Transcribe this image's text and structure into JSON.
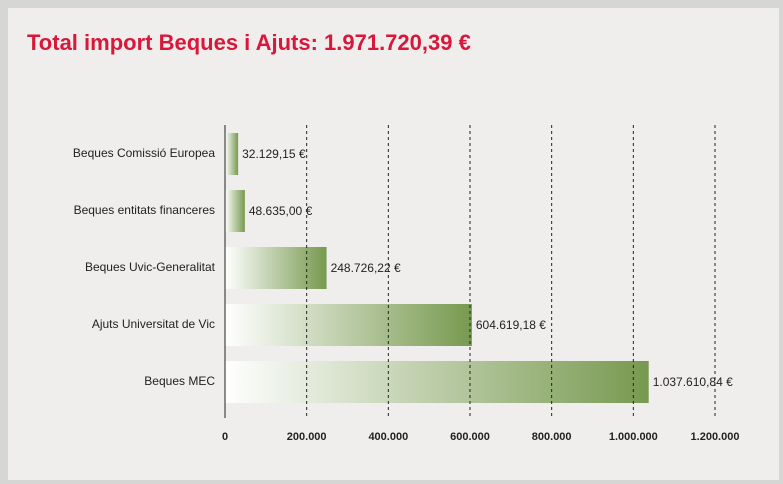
{
  "chart_data": {
    "type": "barh",
    "title": "Total import Beques i Ajuts: 1.971.720,39 €",
    "categories": [
      "Beques Comissió Europea",
      "Beques entitats financeres",
      "Beques Uvic-Generalitat",
      "Ajuts Universitat de Vic",
      "Beques MEC"
    ],
    "values": [
      32129.15,
      48635.0,
      248726.22,
      604619.18,
      1037610.84
    ],
    "value_labels": [
      "32.129,15 €",
      "48.635,00 €",
      "248.726,22 €",
      "604.619,18 €",
      "1.037.610,84 €"
    ],
    "color": "#77994f",
    "xlim": [
      0,
      1200000
    ],
    "xticks": [
      0,
      {
        "value": 200000,
        "label": "200.000"
      },
      {
        "value": 400000,
        "label": "400.000"
      },
      {
        "value": 600000,
        "label": "600.000"
      },
      {
        "value": 800000,
        "label": "800.000"
      },
      {
        "value": 1000000,
        "label": "1.000.000"
      },
      {
        "value": 1200000,
        "label": "1.200.000"
      }
    ],
    "grid": true
  }
}
